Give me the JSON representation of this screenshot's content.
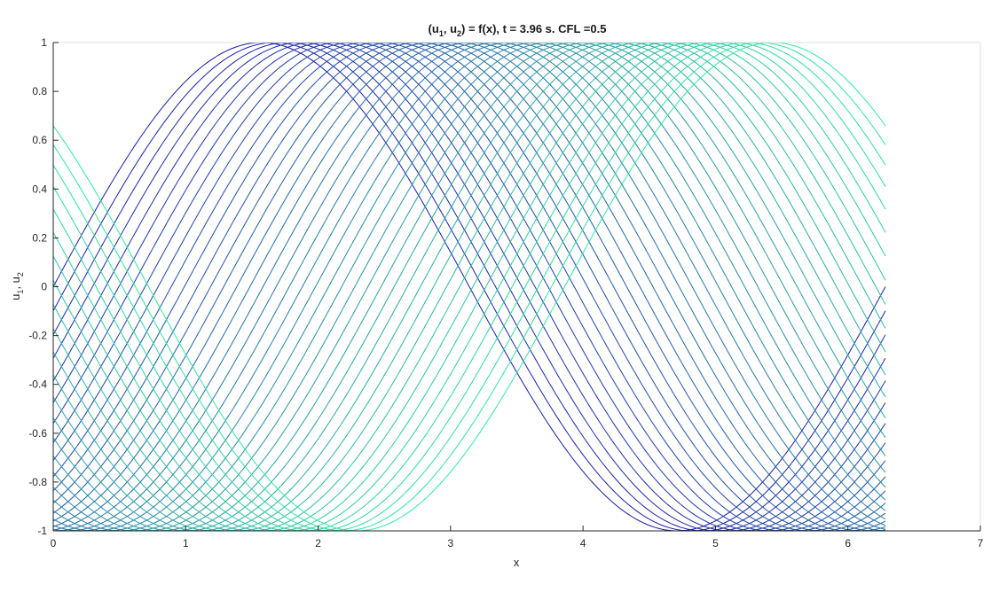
{
  "chart_data": {
    "type": "line",
    "title": {
      "prefix": "(u",
      "sub1": "1",
      "mid": ", u",
      "sub2": "2",
      "suffix": ") = f(x),    t =  3.96 s.    CFL =0.5"
    },
    "xlabel": "x",
    "ylabel": {
      "prefix": "u",
      "sub1": "1",
      "mid": ", u",
      "sub2": "2"
    },
    "xlim": [
      0,
      7
    ],
    "ylim": [
      -1,
      1
    ],
    "xticks": [
      0,
      1,
      2,
      3,
      4,
      5,
      6,
      7
    ],
    "yticks": [
      -1,
      -0.8,
      -0.6,
      -0.4,
      -0.2,
      0,
      0.2,
      0.4,
      0.6,
      0.8,
      1
    ],
    "grid": false,
    "x_range": [
      0,
      6.2832
    ],
    "curve_family": {
      "formula": "y = sin(x - shift)",
      "count": 40,
      "shift_start": 0,
      "shift_step": 0.099,
      "shift_end": 3.861
    },
    "series_note": "40 sine curves shifted in x; color runs from dark blue (shift 0) to aqua-green (shift 3.86)",
    "colors": {
      "start": "#1a1aa8",
      "end": "#2ee8a2",
      "axes": "#262626",
      "frame": "#e0e0e0"
    }
  }
}
